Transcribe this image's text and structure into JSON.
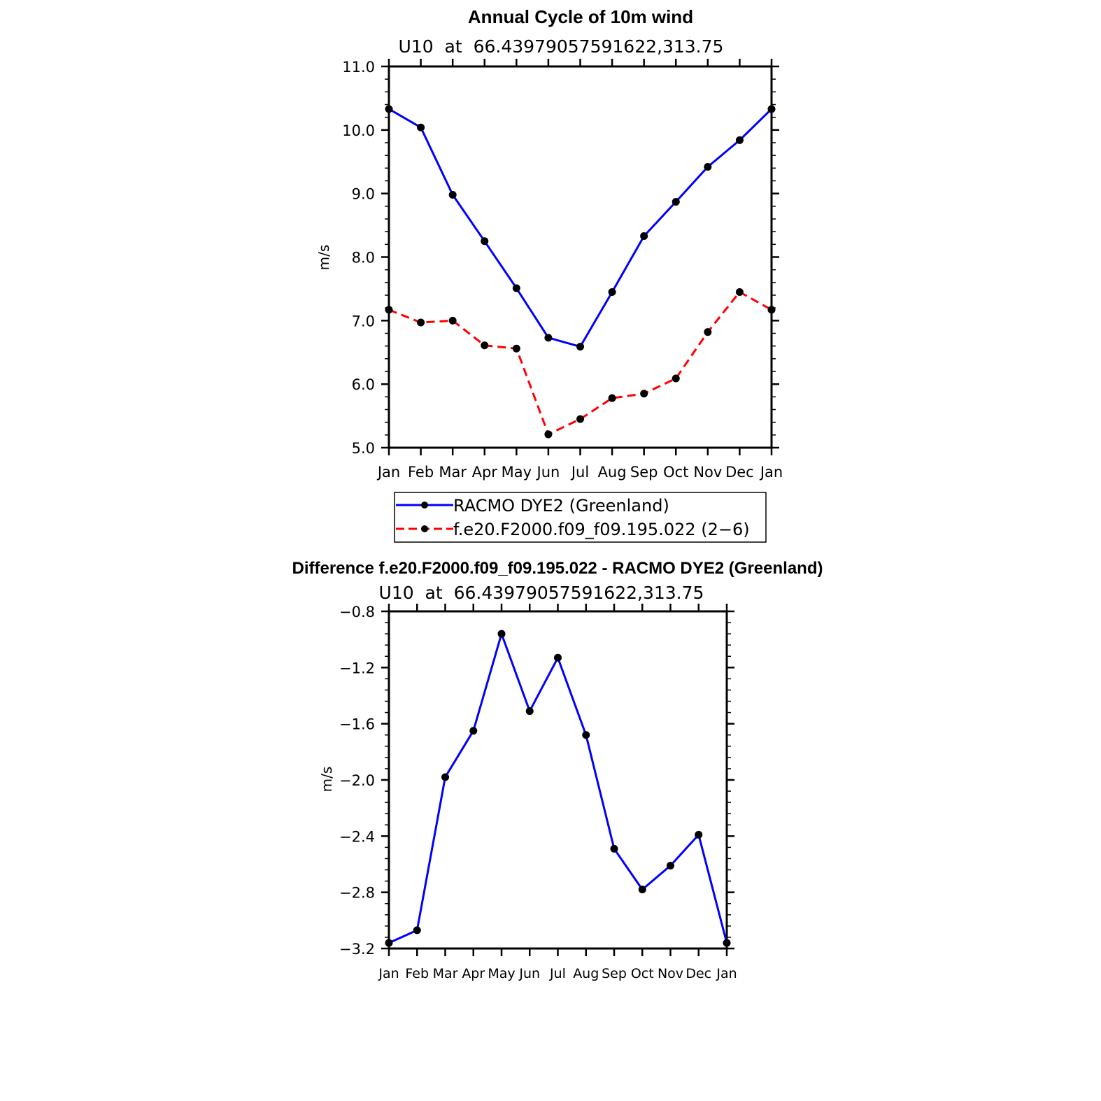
{
  "colors": {
    "series_solid": "#0000ff",
    "series_dashed": "#ff0000",
    "marker": "#000000"
  },
  "chart_data": [
    {
      "type": "line",
      "title": "Annual Cycle of 10m wind",
      "subtitle": "U10  at  66.43979057591622,313.75",
      "xlabel": "",
      "ylabel": "m/s",
      "categories": [
        "Jan",
        "Feb",
        "Mar",
        "Apr",
        "May",
        "Jun",
        "Jul",
        "Aug",
        "Sep",
        "Oct",
        "Nov",
        "Dec",
        "Jan"
      ],
      "ylim": [
        5.0,
        11.0
      ],
      "yticks": [
        5.0,
        6.0,
        7.0,
        8.0,
        9.0,
        10.0,
        11.0
      ],
      "ytick_labels": [
        "5.0",
        "6.0",
        "7.0",
        "8.0",
        "9.0",
        "10.0",
        "11.0"
      ],
      "series": [
        {
          "name": "RACMO DYE2 (Greenland)",
          "style": "solid",
          "values": [
            10.33,
            10.04,
            8.98,
            8.25,
            7.51,
            6.73,
            6.59,
            7.45,
            8.33,
            8.87,
            9.42,
            9.84,
            10.33
          ]
        },
        {
          "name": "f.e20.F2000.f09_f09.195.022 (2−6)",
          "style": "dashed",
          "values": [
            7.17,
            6.97,
            7.0,
            6.61,
            6.56,
            5.21,
            5.45,
            5.78,
            5.85,
            6.09,
            6.82,
            7.45,
            7.17
          ]
        }
      ],
      "legend": "bottom"
    },
    {
      "type": "line",
      "title": "Difference f.e20.F2000.f09_f09.195.022 - RACMO DYE2 (Greenland)",
      "subtitle": "U10  at  66.43979057591622,313.75",
      "xlabel": "",
      "ylabel": "m/s",
      "categories": [
        "Jan",
        "Feb",
        "Mar",
        "Apr",
        "May",
        "Jun",
        "Jul",
        "Aug",
        "Sep",
        "Oct",
        "Nov",
        "Dec",
        "Jan"
      ],
      "ylim": [
        -3.2,
        -0.8
      ],
      "yticks": [
        -3.2,
        -2.8,
        -2.4,
        -2.0,
        -1.6,
        -1.2,
        -0.8
      ],
      "ytick_labels": [
        "−3.2",
        "−2.8",
        "−2.4",
        "−2.0",
        "−1.6",
        "−1.2",
        "−0.8"
      ],
      "series": [
        {
          "name": "Difference",
          "style": "solid",
          "values": [
            -3.16,
            -3.07,
            -1.98,
            -1.65,
            -0.96,
            -1.51,
            -1.13,
            -1.68,
            -2.49,
            -2.78,
            -2.61,
            -2.39,
            -3.16
          ]
        }
      ]
    }
  ]
}
